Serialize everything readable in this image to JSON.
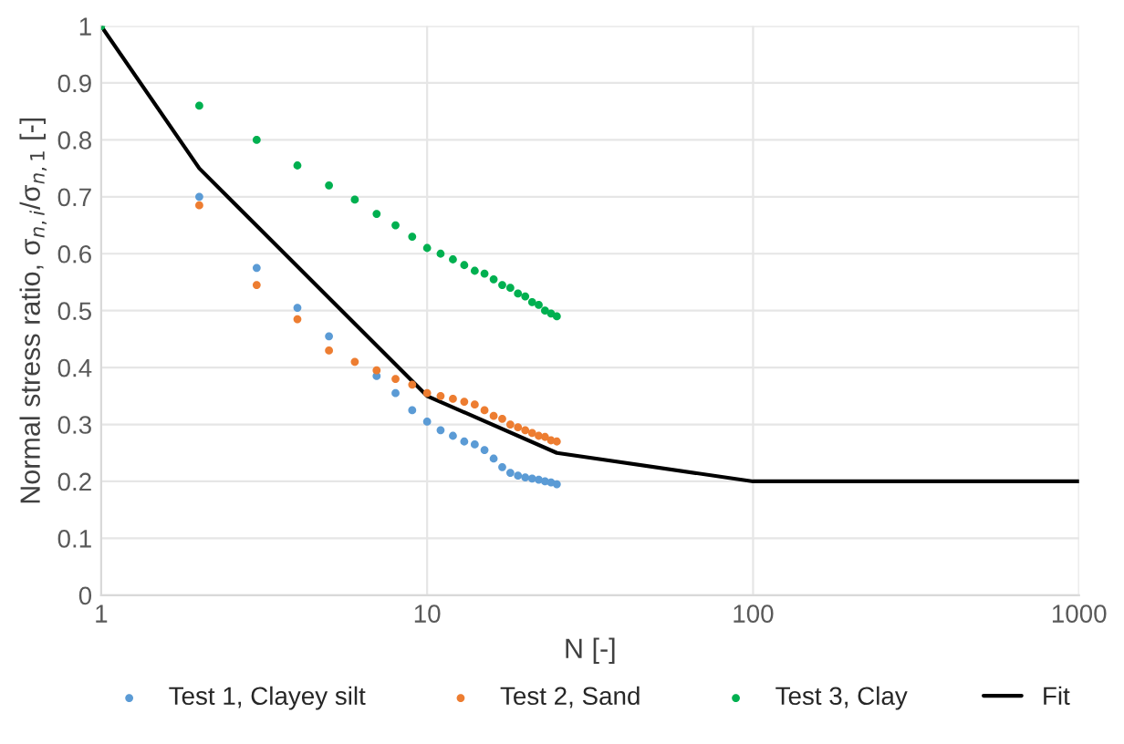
{
  "chart_data": {
    "type": "scatter",
    "xlabel": "N [-]",
    "ylabel": "Normal stress ratio, σ$_{n,i}$/σ$_{n,1}$ [-]",
    "log": "x",
    "xlim": [
      1,
      1000
    ],
    "xticks": [
      1,
      10,
      100,
      1000
    ],
    "ylim": [
      0,
      1
    ],
    "yticks": [
      0,
      0.1,
      0.2,
      0.3,
      0.4,
      0.5,
      0.6,
      0.7,
      0.8,
      0.9,
      1
    ],
    "grid": true,
    "legend": "bottom",
    "marker": "circle",
    "x": [
      1,
      2,
      3,
      4,
      5,
      6,
      7,
      8,
      9,
      10,
      11,
      12,
      13,
      14,
      15,
      16,
      17,
      18,
      19,
      20,
      21,
      22,
      23,
      24,
      25
    ],
    "series": [
      {
        "name": "Test 1, Clayey silt",
        "color": "#5b9bd5",
        "values": [
          null,
          0.7,
          0.575,
          0.505,
          0.455,
          null,
          0.385,
          0.355,
          0.325,
          0.305,
          0.29,
          0.28,
          0.27,
          0.265,
          0.255,
          0.24,
          0.225,
          0.215,
          0.21,
          0.207,
          0.205,
          0.203,
          0.2,
          0.198,
          0.195
        ]
      },
      {
        "name": "Test 2, Sand",
        "color": "#ed7d31",
        "values": [
          null,
          0.685,
          0.545,
          0.485,
          0.43,
          0.41,
          0.395,
          0.38,
          0.37,
          0.355,
          0.35,
          0.345,
          0.34,
          0.335,
          0.325,
          0.315,
          0.31,
          0.3,
          0.295,
          0.29,
          0.285,
          0.28,
          0.278,
          0.272,
          0.27
        ]
      },
      {
        "name": "Test 3, Clay",
        "color": "#00b050",
        "values": [
          1.0,
          0.86,
          0.8,
          0.755,
          0.72,
          0.695,
          0.67,
          0.65,
          0.63,
          0.61,
          0.6,
          0.59,
          0.58,
          0.57,
          0.565,
          0.555,
          0.545,
          0.54,
          0.53,
          0.525,
          0.515,
          0.51,
          0.5,
          0.495,
          0.49
        ]
      },
      {
        "name": "Fit",
        "type": "line",
        "marker": "none",
        "color": "#000000",
        "x": [
          1,
          2,
          10,
          25,
          100,
          1000
        ],
        "values": [
          1.0,
          0.75,
          0.35,
          0.25,
          0.2,
          0.2
        ]
      }
    ]
  }
}
